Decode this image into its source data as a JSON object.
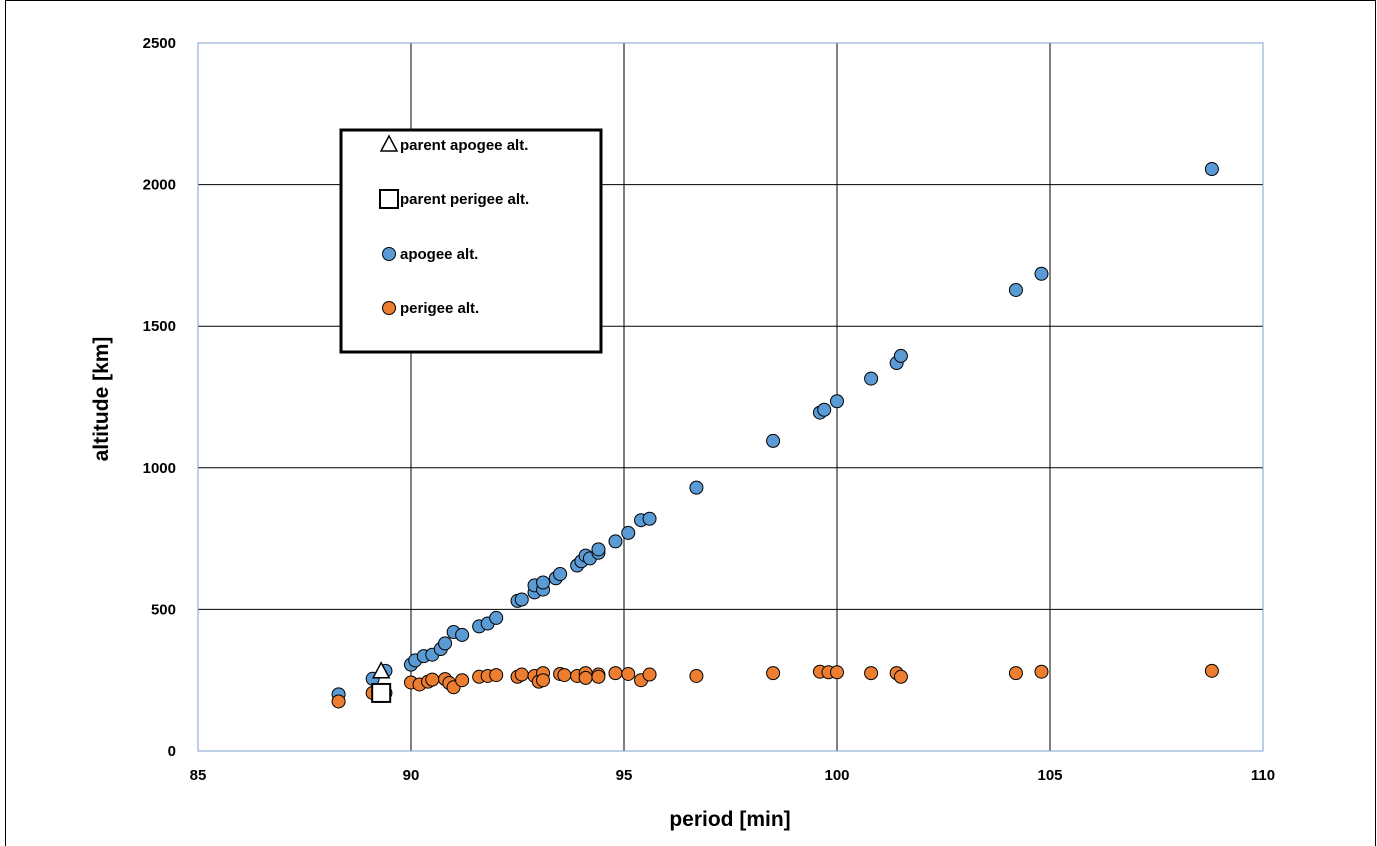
{
  "chart_data": {
    "type": "scatter",
    "title": "",
    "xlabel": "period [min]",
    "ylabel": "altitude [km]",
    "xlim": [
      85,
      110
    ],
    "ylim": [
      0,
      2500
    ],
    "x_ticks": [
      "85",
      "90",
      "95",
      "100",
      "105",
      "110"
    ],
    "y_ticks": [
      "0",
      "500",
      "1000",
      "1500",
      "2000",
      "2500"
    ],
    "grid": true,
    "legend_position": "upper-left inside plot",
    "colors": {
      "apogee": "#5b9bd5",
      "perigee": "#ed7d31",
      "parent": "#000000",
      "grid": "#000000",
      "plot_border": "#7f9fcf"
    },
    "series": [
      {
        "name": "parent apogee alt.",
        "marker": "triangle",
        "points": [
          [
            89.3,
            280
          ]
        ]
      },
      {
        "name": "parent perigee alt.",
        "marker": "square",
        "points": [
          [
            89.3,
            205
          ]
        ]
      },
      {
        "name": "apogee alt.",
        "marker": "circle",
        "points": [
          [
            88.3,
            200
          ],
          [
            89.1,
            255
          ],
          [
            89.4,
            283
          ],
          [
            90.0,
            305
          ],
          [
            90.1,
            320
          ],
          [
            90.3,
            335
          ],
          [
            90.5,
            340
          ],
          [
            90.7,
            360
          ],
          [
            90.8,
            380
          ],
          [
            91.0,
            420
          ],
          [
            91.2,
            410
          ],
          [
            91.6,
            440
          ],
          [
            91.8,
            450
          ],
          [
            92.0,
            470
          ],
          [
            92.5,
            530
          ],
          [
            92.6,
            535
          ],
          [
            92.9,
            560
          ],
          [
            92.9,
            585
          ],
          [
            93.1,
            570
          ],
          [
            93.1,
            595
          ],
          [
            93.4,
            610
          ],
          [
            93.5,
            625
          ],
          [
            93.9,
            655
          ],
          [
            94.0,
            670
          ],
          [
            94.1,
            690
          ],
          [
            94.2,
            680
          ],
          [
            94.4,
            700
          ],
          [
            94.4,
            712
          ],
          [
            94.8,
            740
          ],
          [
            95.1,
            770
          ],
          [
            95.4,
            815
          ],
          [
            95.6,
            820
          ],
          [
            96.7,
            930
          ],
          [
            98.5,
            1095
          ],
          [
            99.6,
            1195
          ],
          [
            99.7,
            1205
          ],
          [
            100.0,
            1235
          ],
          [
            100.8,
            1315
          ],
          [
            101.4,
            1370
          ],
          [
            101.5,
            1395
          ],
          [
            104.2,
            1628
          ],
          [
            104.8,
            1685
          ],
          [
            108.8,
            2055
          ]
        ]
      },
      {
        "name": "perigee alt.",
        "marker": "circle",
        "points": [
          [
            88.3,
            175
          ],
          [
            89.1,
            205
          ],
          [
            89.4,
            205
          ],
          [
            90.0,
            242
          ],
          [
            90.2,
            235
          ],
          [
            90.4,
            245
          ],
          [
            90.5,
            252
          ],
          [
            90.8,
            254
          ],
          [
            90.9,
            240
          ],
          [
            91.0,
            225
          ],
          [
            91.2,
            250
          ],
          [
            91.6,
            262
          ],
          [
            91.8,
            265
          ],
          [
            92.0,
            268
          ],
          [
            92.5,
            262
          ],
          [
            92.6,
            270
          ],
          [
            92.9,
            265
          ],
          [
            93.0,
            245
          ],
          [
            93.1,
            275
          ],
          [
            93.1,
            250
          ],
          [
            93.5,
            272
          ],
          [
            93.6,
            268
          ],
          [
            93.9,
            265
          ],
          [
            94.1,
            275
          ],
          [
            94.1,
            258
          ],
          [
            94.4,
            270
          ],
          [
            94.4,
            262
          ],
          [
            94.8,
            275
          ],
          [
            95.1,
            272
          ],
          [
            95.4,
            250
          ],
          [
            95.6,
            270
          ],
          [
            96.7,
            265
          ],
          [
            98.5,
            275
          ],
          [
            99.6,
            280
          ],
          [
            99.8,
            278
          ],
          [
            100.0,
            278
          ],
          [
            100.8,
            275
          ],
          [
            101.4,
            275
          ],
          [
            101.5,
            262
          ],
          [
            104.2,
            275
          ],
          [
            104.8,
            280
          ],
          [
            108.8,
            283
          ]
        ]
      }
    ]
  }
}
